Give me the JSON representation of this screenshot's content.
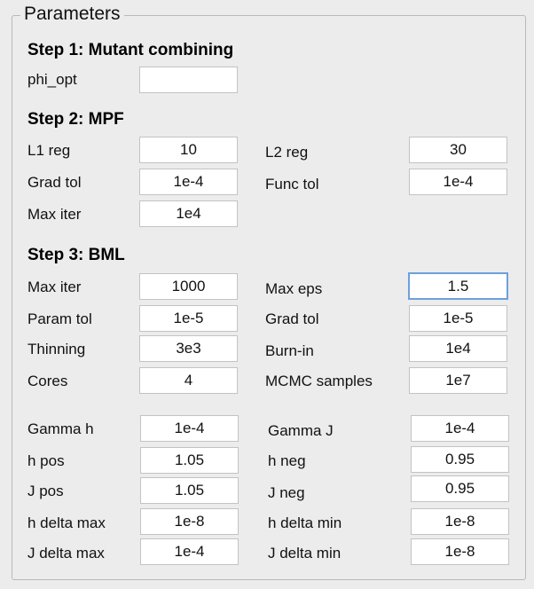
{
  "legend": "Parameters",
  "step1": {
    "title": "Step 1: Mutant combining",
    "phi_opt_label": "phi_opt",
    "phi_opt_value": ""
  },
  "step2": {
    "title": "Step 2: MPF",
    "l1_label": "L1 reg",
    "l1_value": "10",
    "l2_label": "L2 reg",
    "l2_value": "30",
    "gradtol_label": "Grad tol",
    "gradtol_value": "1e-4",
    "functol_label": "Func tol",
    "functol_value": "1e-4",
    "maxiter_label": "Max iter",
    "maxiter_value": "1e4"
  },
  "step3": {
    "title": "Step 3: BML",
    "maxiter_label": "Max iter",
    "maxiter_value": "1000",
    "maxeps_label": "Max eps",
    "maxeps_value": "1.5",
    "paramtol_label": "Param tol",
    "paramtol_value": "1e-5",
    "gradtol_label": "Grad tol",
    "gradtol_value": "1e-5",
    "thinning_label": "Thinning",
    "thinning_value": "3e3",
    "burnin_label": "Burn-in",
    "burnin_value": "1e4",
    "cores_label": "Cores",
    "cores_value": "4",
    "mcmc_label": "MCMC samples",
    "mcmc_value": "1e7",
    "gammah_label": "Gamma h",
    "gammah_value": "1e-4",
    "gammaj_label": "Gamma J",
    "gammaj_value": "1e-4",
    "hpos_label": "h pos",
    "hpos_value": "1.05",
    "hneg_label": "h neg",
    "hneg_value": "0.95",
    "jpos_label": "J pos",
    "jpos_value": "1.05",
    "jneg_label": "J neg",
    "jneg_value": "0.95",
    "hdeltamax_label": "h delta max",
    "hdeltamax_value": "1e-8",
    "hdeltamin_label": "h delta min",
    "hdeltamin_value": "1e-8",
    "jdeltamax_label": "J delta max",
    "jdeltamax_value": "1e-4",
    "jdeltamin_label": "J delta min",
    "jdeltamin_value": "1e-8"
  }
}
